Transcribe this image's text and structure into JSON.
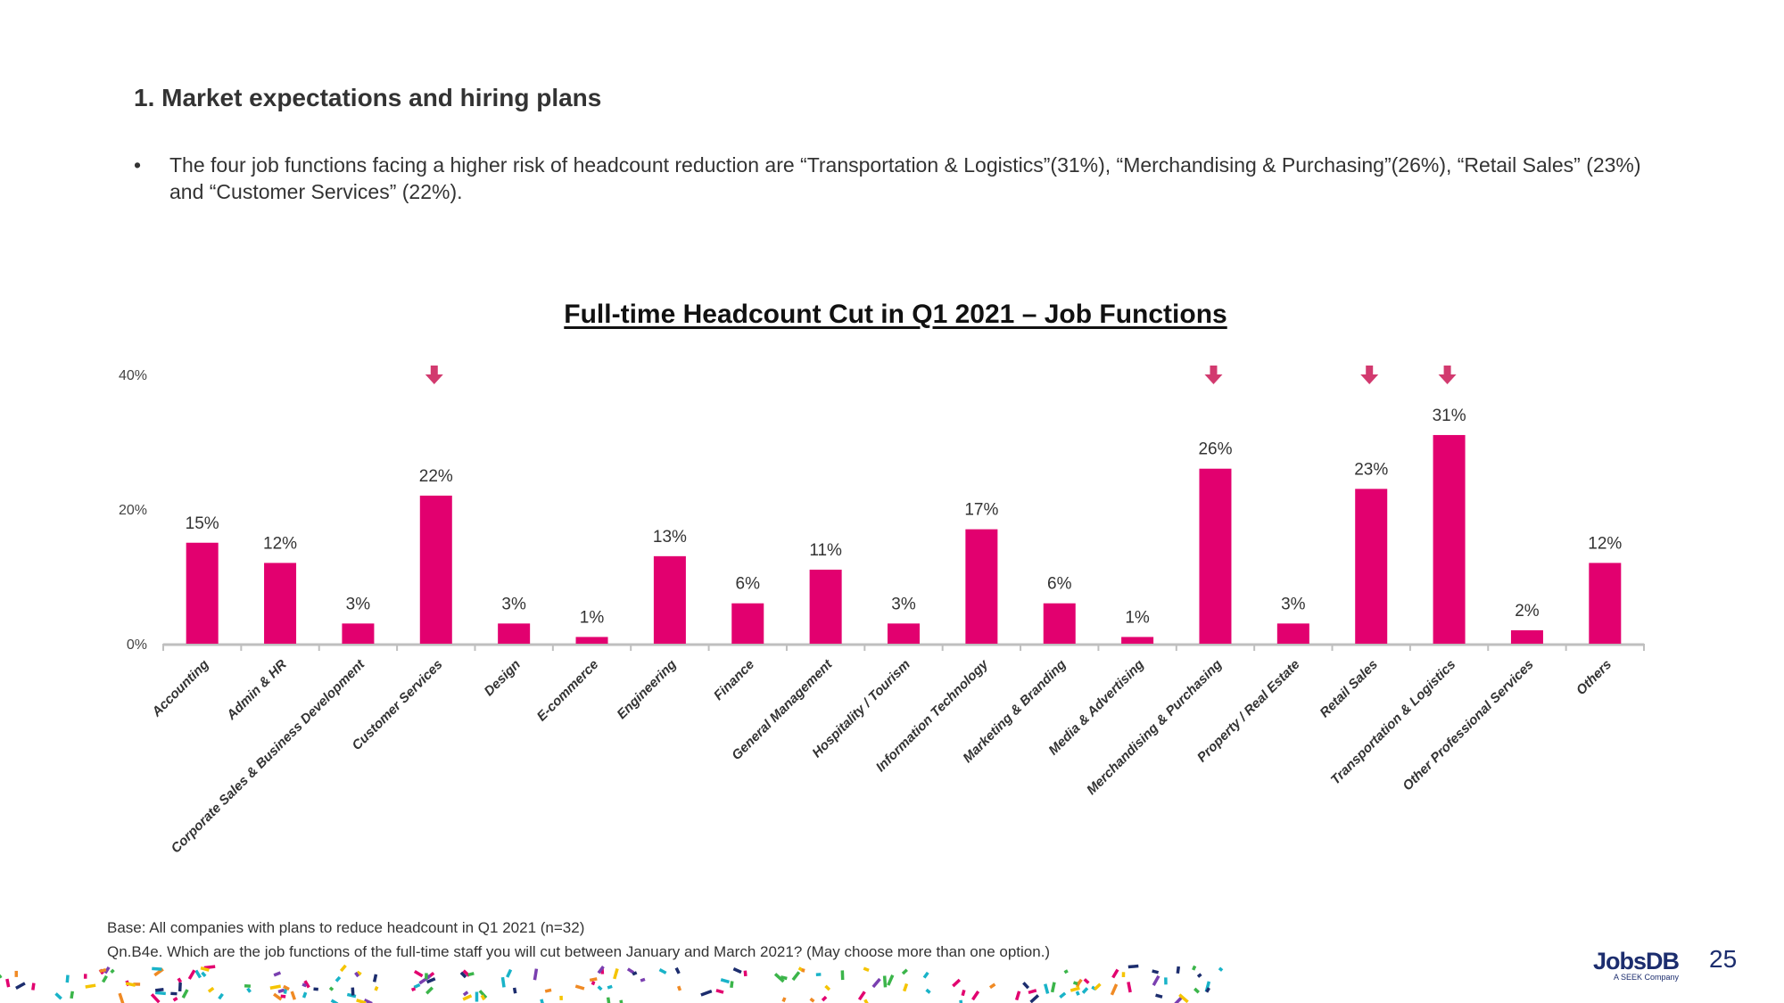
{
  "heading": "1. Market expectations and hiring plans",
  "bullet": "The four job functions facing a higher risk of headcount reduction are “Transportation & Logistics”(31%), “Merchandising & Purchasing”(26%), “Retail Sales” (23%) and “Customer Services” (22%).",
  "footnotes": {
    "base": "Base: All companies with plans to reduce headcount in Q1 2021 (n=32)",
    "question": "Qn.B4e. Which are the job functions of the full-time staff you will cut between January and March 2021? (May choose more than one option.)"
  },
  "logo": {
    "name": "JobsDB",
    "tagline": "A SEEK Company"
  },
  "page_number": "25",
  "colors": {
    "bar": "#e2006f",
    "arrow": "#d23a6f",
    "axis": "#bfbfbf",
    "brand": "#1c2d6e"
  },
  "chart_data": {
    "type": "bar",
    "title": "Full-time Headcount Cut in Q1 2021 – Job Functions",
    "categories": [
      "Accounting",
      "Admin & HR",
      "Corporate Sales & Business Development",
      "Customer Services",
      "Design",
      "E-commerce",
      "Engineering",
      "Finance",
      "General Management",
      "Hospitality / Tourism",
      "Information Technology",
      "Marketing & Branding",
      "Media & Advertising",
      "Merchandising & Purchasing",
      "Property / Real Estate",
      "Retail Sales",
      "Transportation & Logistics",
      "Other Professional Services",
      "Others"
    ],
    "values": [
      15,
      12,
      3,
      22,
      3,
      1,
      13,
      6,
      11,
      3,
      17,
      6,
      1,
      26,
      3,
      23,
      31,
      2,
      12
    ],
    "data_labels": [
      "15%",
      "12%",
      "3%",
      "22%",
      "3%",
      "1%",
      "13%",
      "6%",
      "11%",
      "3%",
      "17%",
      "6%",
      "1%",
      "26%",
      "3%",
      "23%",
      "31%",
      "2%",
      "12%"
    ],
    "highlighted": [
      "Customer Services",
      "Merchandising & Purchasing",
      "Retail Sales",
      "Transportation & Logistics"
    ],
    "highlight_marker": "down-arrow-icon",
    "ylim": [
      0,
      40
    ],
    "yticks": [
      "0%",
      "20%",
      "40%"
    ],
    "xlabel": "",
    "ylabel": "",
    "grid": false,
    "legend": "none"
  }
}
